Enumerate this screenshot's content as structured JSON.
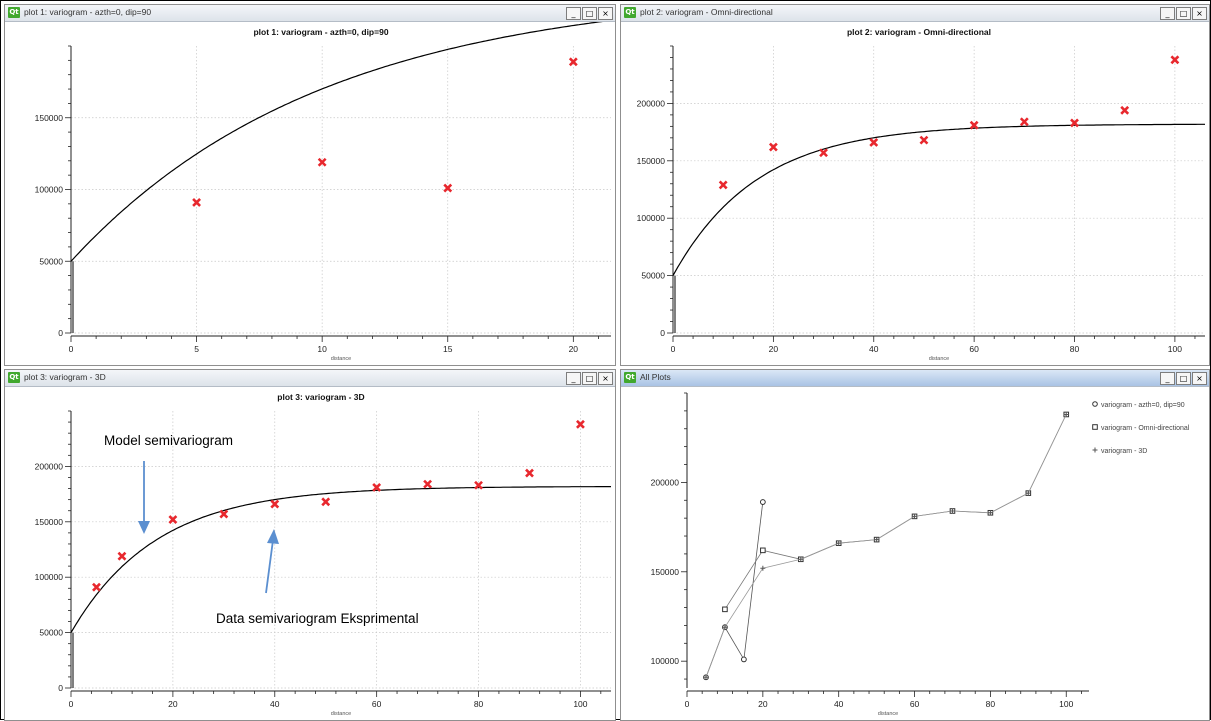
{
  "windows": [
    {
      "title": "plot 1:  variogram - azth=0, dip=90",
      "active": false
    },
    {
      "title": "plot 2:  variogram - Omni-directional",
      "active": false
    },
    {
      "title": "plot 3:  variogram - 3D",
      "active": false
    },
    {
      "title": "All Plots",
      "active": true
    }
  ],
  "window_controls": {
    "minimize": "_",
    "maximize": "□",
    "close": "×"
  },
  "annotations": {
    "model": "Model semivariogram",
    "data": "Data semivariogram Eksprimental"
  },
  "colors": {
    "data_marker": "#e8282e",
    "curve": "#000000",
    "grid": "#c8c8c8",
    "arrow": "#5b8fd0"
  },
  "chart_data": [
    {
      "type": "scatter",
      "title": "plot 1: variogram - azth=0, dip=90",
      "xlabel": "distance",
      "ylabel": "",
      "xlim": [
        0,
        21.5
      ],
      "ylim": [
        0,
        200000
      ],
      "xticks": [
        0,
        5,
        10,
        15,
        20
      ],
      "yticks": [
        0,
        50000,
        100000,
        150000
      ],
      "grid": true,
      "series": [
        {
          "kind": "points",
          "x": [
            5,
            10,
            15,
            20
          ],
          "y": [
            91000,
            119000,
            101000,
            189000
          ]
        },
        {
          "kind": "model",
          "nugget": 50000,
          "sill": 190000,
          "range": 30
        }
      ]
    },
    {
      "type": "scatter",
      "title": "plot 2: variogram - Omni-directional",
      "xlabel": "distance",
      "ylabel": "",
      "xlim": [
        0,
        106
      ],
      "ylim": [
        0,
        250000
      ],
      "xticks": [
        0,
        20,
        40,
        60,
        80,
        100
      ],
      "yticks": [
        0,
        50000,
        100000,
        150000,
        200000
      ],
      "grid": true,
      "series": [
        {
          "kind": "points",
          "x": [
            10,
            20,
            30,
            40,
            50,
            60,
            70,
            80,
            90,
            100
          ],
          "y": [
            129000,
            162000,
            157000,
            166000,
            168000,
            181000,
            184000,
            183000,
            194000,
            238000
          ]
        },
        {
          "kind": "model",
          "nugget": 50000,
          "sill": 132000,
          "range": 50
        }
      ]
    },
    {
      "type": "scatter",
      "title": "plot 3: variogram - 3D",
      "xlabel": "distance",
      "ylabel": "",
      "xlim": [
        0,
        106
      ],
      "ylim": [
        0,
        250000
      ],
      "xticks": [
        0,
        20,
        40,
        60,
        80,
        100
      ],
      "yticks": [
        0,
        50000,
        100000,
        150000,
        200000
      ],
      "grid": true,
      "series": [
        {
          "kind": "points",
          "x": [
            5,
            10,
            20,
            30,
            40,
            50,
            60,
            70,
            80,
            90,
            100
          ],
          "y": [
            91000,
            119000,
            152000,
            157000,
            166000,
            168000,
            181000,
            184000,
            183000,
            194000,
            238000
          ]
        },
        {
          "kind": "model",
          "nugget": 50000,
          "sill": 132000,
          "range": 50
        }
      ]
    },
    {
      "type": "line",
      "title": "",
      "xlabel": "distance",
      "ylabel": "",
      "xlim": [
        0,
        106
      ],
      "ylim": [
        85000,
        250000
      ],
      "xticks": [
        0,
        20,
        40,
        60,
        80,
        100
      ],
      "yticks": [
        100000,
        150000,
        200000
      ],
      "grid": false,
      "legend": "top-right",
      "series": [
        {
          "name": "variogram - azth=0, dip=90",
          "marker": "o",
          "x": [
            5,
            10,
            15,
            20
          ],
          "y": [
            91000,
            119000,
            101000,
            189000
          ]
        },
        {
          "name": "variogram - Omni-directional",
          "marker": "s",
          "x": [
            10,
            20,
            30,
            40,
            50,
            60,
            70,
            80,
            90,
            100
          ],
          "y": [
            129000,
            162000,
            157000,
            166000,
            168000,
            181000,
            184000,
            183000,
            194000,
            238000
          ]
        },
        {
          "name": "variogram - 3D",
          "marker": "+",
          "x": [
            5,
            10,
            20,
            30,
            40,
            50,
            60,
            70,
            80,
            90,
            100
          ],
          "y": [
            91000,
            119000,
            152000,
            157000,
            166000,
            168000,
            181000,
            184000,
            183000,
            194000,
            238000
          ]
        }
      ]
    }
  ]
}
